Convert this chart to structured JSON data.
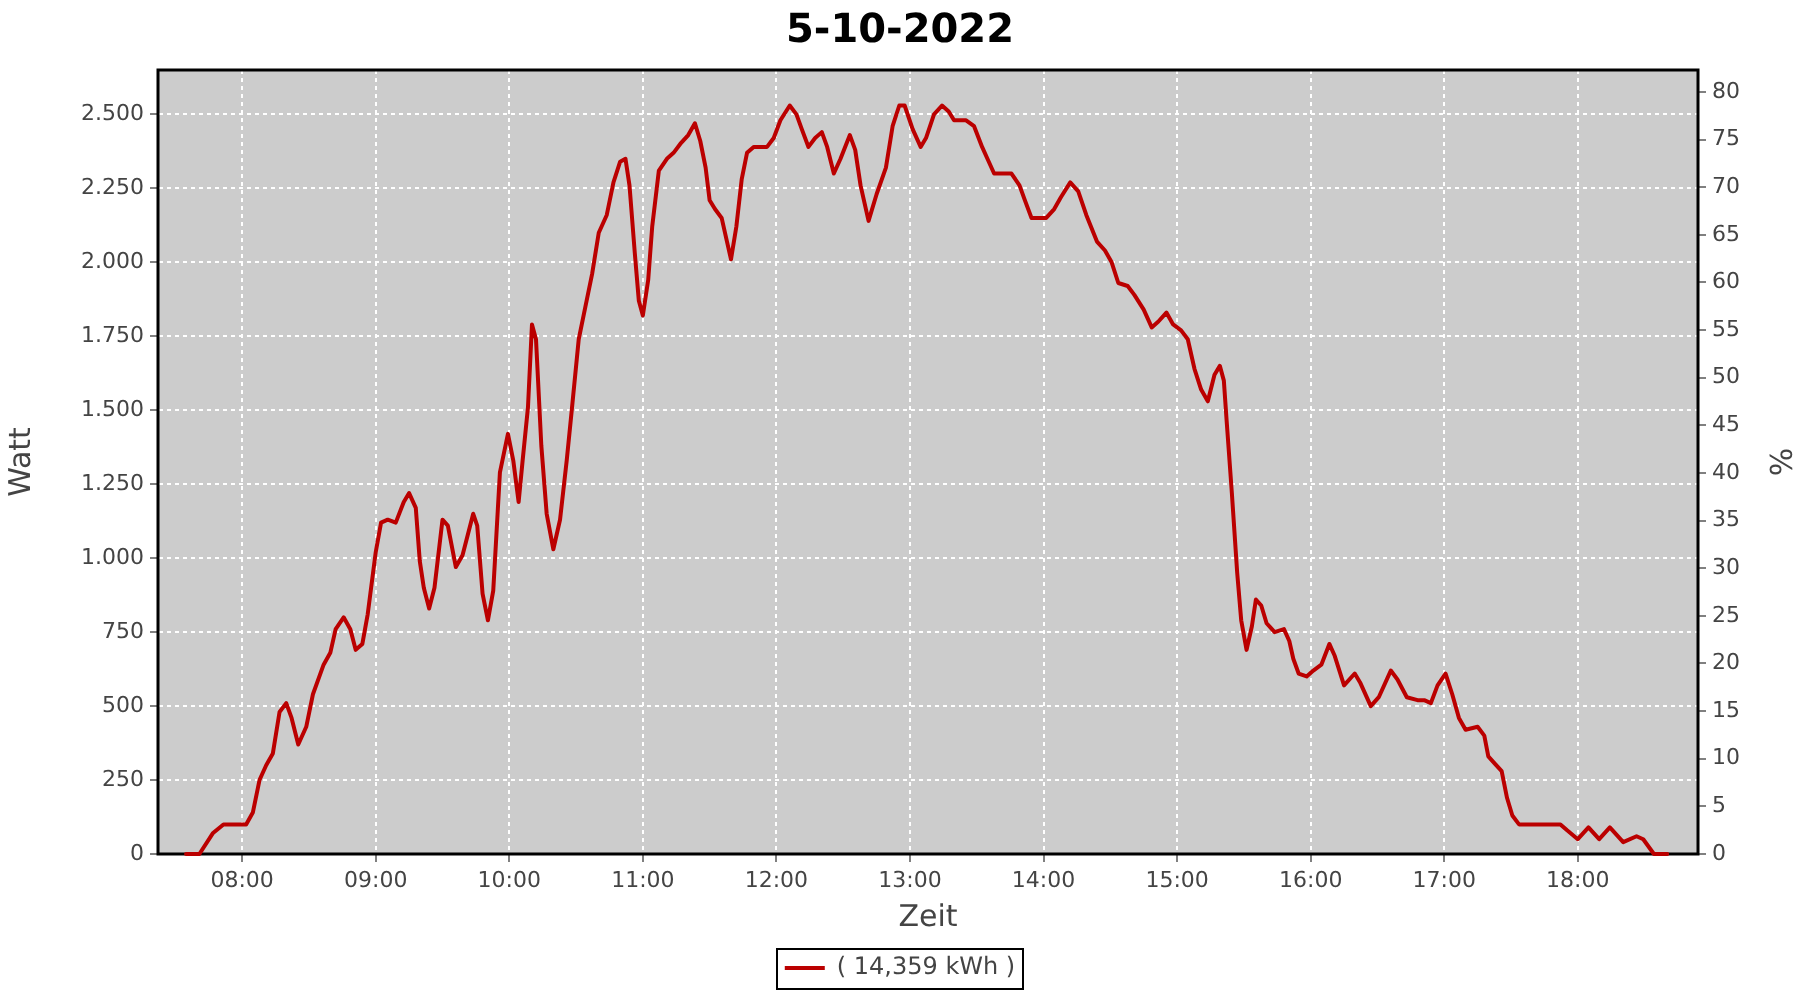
{
  "chart_data": {
    "type": "line",
    "title": "5-10-2022",
    "xlabel": "Zeit",
    "ylabel": "Watt",
    "y2label": "%",
    "x": [
      7.58,
      7.68,
      7.78,
      7.86,
      8.03,
      8.08,
      8.13,
      8.18,
      8.23,
      8.28,
      8.33,
      8.37,
      8.42,
      8.48,
      8.53,
      8.61,
      8.66,
      8.7,
      8.76,
      8.81,
      8.85,
      8.9,
      8.94,
      9.0,
      9.04,
      9.09,
      9.15,
      9.21,
      9.25,
      9.3,
      9.33,
      9.36,
      9.4,
      9.44,
      9.5,
      9.54,
      9.6,
      9.65,
      9.73,
      9.76,
      9.8,
      9.84,
      9.88,
      9.93,
      9.99,
      10.03,
      10.07,
      10.1,
      10.14,
      10.17,
      10.2,
      10.24,
      10.28,
      10.33,
      10.38,
      10.43,
      10.47,
      10.52,
      10.57,
      10.62,
      10.67,
      10.73,
      10.78,
      10.83,
      10.87,
      10.9,
      10.94,
      10.97,
      11.0,
      11.04,
      11.07,
      11.12,
      11.18,
      11.23,
      11.28,
      11.34,
      11.39,
      11.43,
      11.47,
      11.5,
      11.54,
      11.59,
      11.63,
      11.66,
      11.7,
      11.74,
      11.78,
      11.83,
      11.93,
      11.98,
      12.03,
      12.1,
      12.15,
      12.19,
      12.24,
      12.29,
      12.34,
      12.38,
      12.43,
      12.48,
      12.55,
      12.59,
      12.63,
      12.69,
      12.75,
      12.82,
      12.87,
      12.92,
      12.96,
      13.02,
      13.08,
      13.12,
      13.18,
      13.24,
      13.29,
      13.33,
      13.42,
      13.48,
      13.54,
      13.58,
      13.63,
      13.76,
      13.82,
      13.86,
      13.91,
      14.02,
      14.08,
      14.13,
      14.2,
      14.26,
      14.32,
      14.4,
      14.46,
      14.51,
      14.56,
      14.63,
      14.68,
      14.75,
      14.81,
      14.86,
      14.92,
      14.97,
      15.03,
      15.08,
      15.13,
      15.18,
      15.23,
      15.28,
      15.32,
      15.35,
      15.37,
      15.41,
      15.45,
      15.48,
      15.52,
      15.56,
      15.59,
      15.63,
      15.67,
      15.73,
      15.8,
      15.84,
      15.87,
      15.91,
      15.97,
      16.02,
      16.08,
      16.14,
      16.18,
      16.25,
      16.33,
      16.37,
      16.45,
      16.51,
      16.6,
      16.65,
      16.72,
      16.8,
      16.85,
      16.9,
      16.95,
      17.01,
      17.06,
      17.11,
      17.16,
      17.25,
      17.3,
      17.33,
      17.37,
      17.43,
      17.47,
      17.51,
      17.56,
      17.87,
      17.92,
      18.0,
      18.08,
      18.16,
      18.24,
      18.34,
      18.44,
      18.49,
      18.57,
      18.67
    ],
    "series": [
      {
        "name": "( 14,359 kWh )",
        "color": "#bb0000",
        "values": [
          0,
          0,
          70,
          100,
          100,
          140,
          250,
          300,
          340,
          480,
          510,
          460,
          370,
          430,
          540,
          640,
          680,
          760,
          800,
          760,
          690,
          710,
          810,
          1020,
          1120,
          1130,
          1120,
          1190,
          1220,
          1170,
          990,
          900,
          830,
          900,
          1130,
          1110,
          970,
          1010,
          1150,
          1110,
          880,
          790,
          890,
          1290,
          1420,
          1330,
          1190,
          1330,
          1510,
          1790,
          1740,
          1380,
          1150,
          1030,
          1130,
          1330,
          1510,
          1740,
          1850,
          1960,
          2100,
          2160,
          2270,
          2340,
          2350,
          2260,
          2030,
          1870,
          1820,
          1940,
          2120,
          2310,
          2350,
          2370,
          2400,
          2430,
          2470,
          2410,
          2320,
          2210,
          2180,
          2150,
          2070,
          2010,
          2120,
          2280,
          2370,
          2390,
          2390,
          2420,
          2480,
          2530,
          2500,
          2450,
          2390,
          2420,
          2440,
          2390,
          2300,
          2350,
          2430,
          2380,
          2260,
          2140,
          2230,
          2320,
          2460,
          2530,
          2530,
          2450,
          2390,
          2420,
          2500,
          2530,
          2510,
          2480,
          2480,
          2460,
          2390,
          2350,
          2300,
          2300,
          2260,
          2210,
          2150,
          2150,
          2180,
          2220,
          2270,
          2240,
          2160,
          2070,
          2040,
          2000,
          1930,
          1920,
          1890,
          1840,
          1780,
          1800,
          1830,
          1790,
          1770,
          1740,
          1640,
          1570,
          1530,
          1620,
          1650,
          1600,
          1470,
          1220,
          950,
          790,
          690,
          770,
          860,
          840,
          780,
          750,
          760,
          720,
          660,
          610,
          600,
          620,
          640,
          710,
          670,
          570,
          610,
          580,
          500,
          530,
          620,
          590,
          530,
          520,
          520,
          510,
          570,
          610,
          540,
          460,
          420,
          430,
          400,
          330,
          310,
          280,
          190,
          130,
          100,
          100,
          80,
          50,
          90,
          50,
          90,
          40,
          60,
          50,
          0,
          0
        ]
      }
    ],
    "xlim": [
      7.37,
      18.9
    ],
    "xticks": [
      {
        "value": 8,
        "label": "08:00"
      },
      {
        "value": 9,
        "label": "09:00"
      },
      {
        "value": 10,
        "label": "10:00"
      },
      {
        "value": 11,
        "label": "11:00"
      },
      {
        "value": 12,
        "label": "12:00"
      },
      {
        "value": 13,
        "label": "13:00"
      },
      {
        "value": 14,
        "label": "14:00"
      },
      {
        "value": 15,
        "label": "15:00"
      },
      {
        "value": 16,
        "label": "16:00"
      },
      {
        "value": 17,
        "label": "17:00"
      },
      {
        "value": 18,
        "label": "18:00"
      }
    ],
    "ylim": [
      0,
      2650
    ],
    "yticks": [
      0,
      250,
      500,
      750,
      {
        "value": 1000,
        "label": "1.000"
      },
      {
        "value": 1250,
        "label": "1.250"
      },
      {
        "value": 1500,
        "label": "1.500"
      },
      {
        "value": 1750,
        "label": "1.750"
      },
      {
        "value": 2000,
        "label": "2.000"
      },
      {
        "value": 2250,
        "label": "2.250"
      },
      {
        "value": 2500,
        "label": "2.500"
      }
    ],
    "y2lim": [
      0,
      82.3
    ],
    "y2ticks": [
      0,
      5,
      10,
      15,
      20,
      25,
      30,
      35,
      40,
      45,
      50,
      55,
      60,
      65,
      70,
      75,
      80
    ],
    "grid": true,
    "legend": "bottom",
    "marker": "none",
    "line_style": "solid"
  }
}
